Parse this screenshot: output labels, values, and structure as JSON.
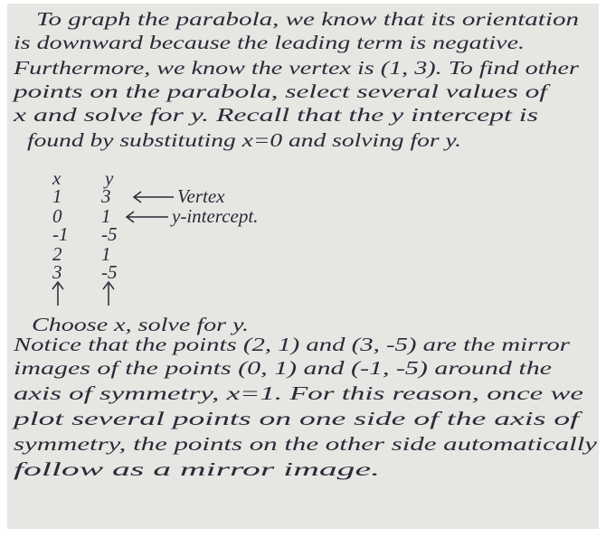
{
  "paragraph_1": [
    "To graph the parabola, we know that its orientation",
    "is downward because the leading term is negative.",
    "Furthermore, we know the vertex is (1, 3). To find other",
    "points on the parabola, select several values of",
    "x and solve for y. Recall that the y intercept is",
    "found by substituting x=0 and solving for y."
  ],
  "table": {
    "header": [
      "x",
      "y"
    ],
    "rows": [
      [
        "1",
        "3"
      ],
      [
        "0",
        "1"
      ],
      [
        "-1",
        "-5"
      ],
      [
        "2",
        "1"
      ],
      [
        "3",
        "-5"
      ]
    ],
    "annotations": [
      "Vertex",
      "y-intercept."
    ]
  },
  "note": "Choose x, solve for y.",
  "paragraph_2": [
    "Notice that the points (2, 1) and (3, -5) are the mirror",
    "images of the points (0, 1) and (-1, -5) around the",
    "axis of symmetry, x=1. For this reason, once we",
    "plot several points on one side of the axis of",
    "symmetry, the points on the other side automatically",
    "follow as a mirror image."
  ]
}
